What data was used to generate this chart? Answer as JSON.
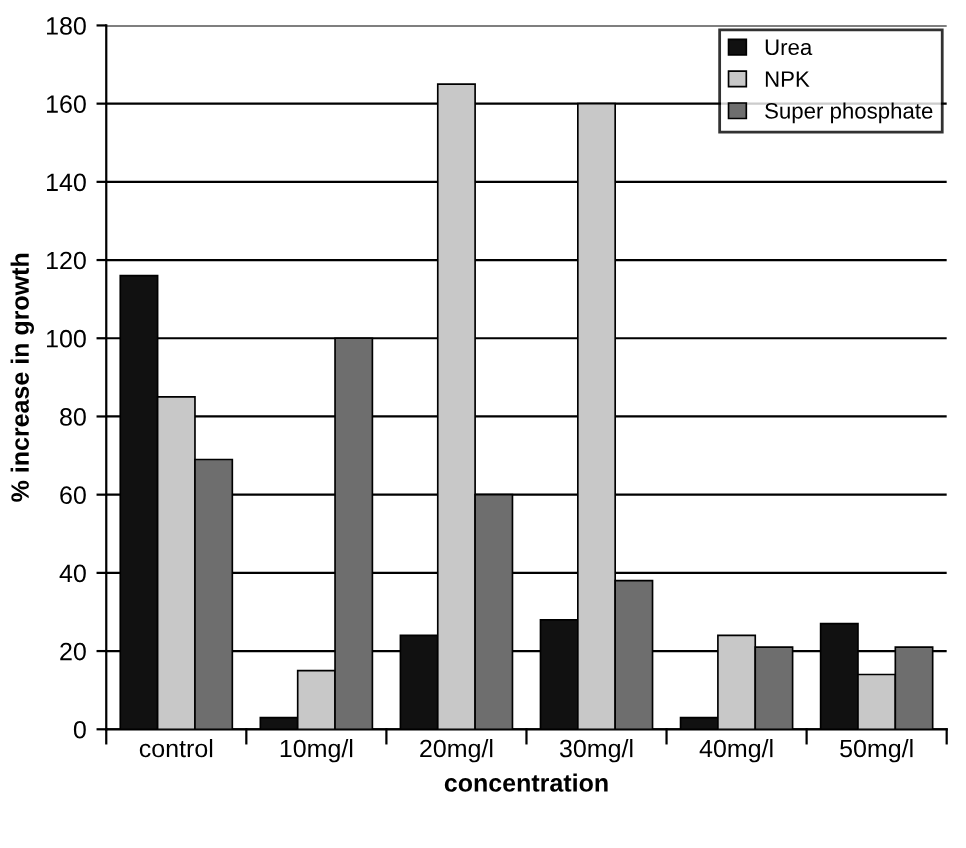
{
  "chart_data": {
    "type": "bar",
    "xlabel": "concentration",
    "ylabel": "% increase in growth",
    "categories": [
      "control",
      "10mg/l",
      "20mg/l",
      "30mg/l",
      "40mg/l",
      "50mg/l"
    ],
    "series": [
      {
        "name": "Urea",
        "color": "#111111",
        "values": [
          116,
          3,
          24,
          28,
          3,
          27
        ]
      },
      {
        "name": "NPK",
        "color": "#c8c8c8",
        "values": [
          85,
          15,
          165,
          160,
          24,
          14
        ]
      },
      {
        "name": "Super phosphate",
        "color": "#6e6e6e",
        "values": [
          69,
          100,
          60,
          38,
          21,
          21
        ]
      }
    ],
    "ylim": [
      0,
      180
    ],
    "yticks": [
      0,
      20,
      40,
      60,
      80,
      100,
      120,
      140,
      160,
      180
    ],
    "grid": "y",
    "legend": "top right"
  }
}
